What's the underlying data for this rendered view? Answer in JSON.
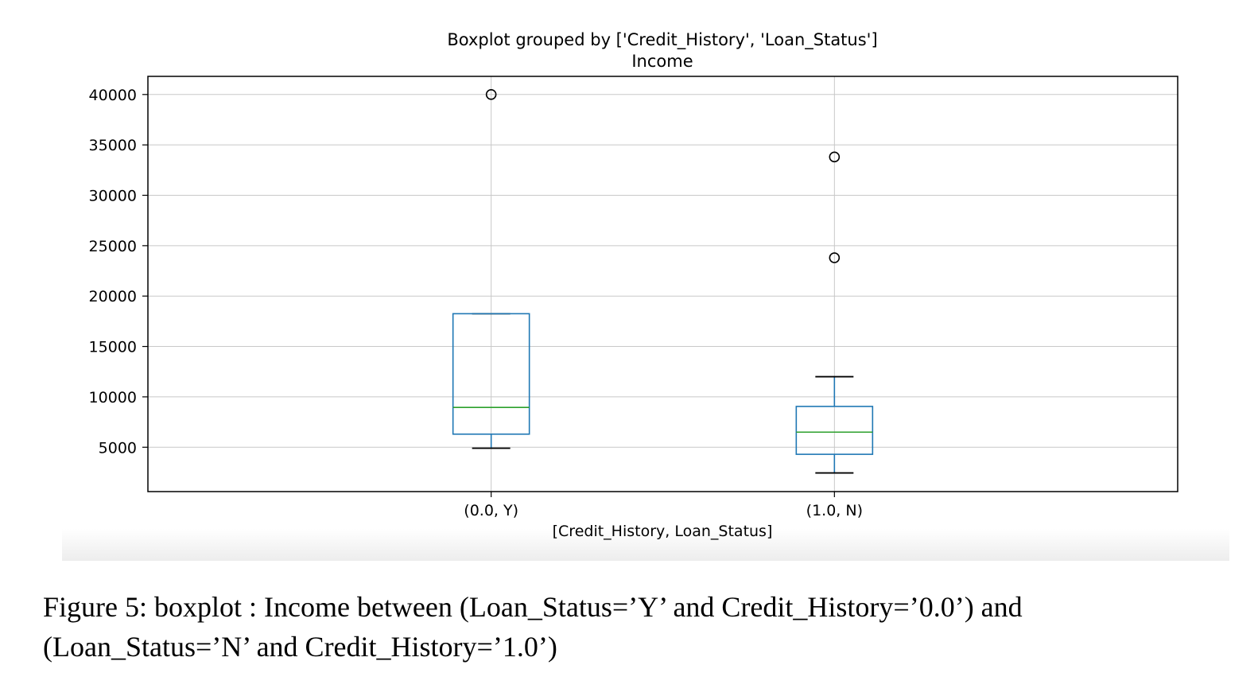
{
  "chart_data": {
    "type": "box",
    "title": "Boxplot grouped by ['Credit_History', 'Loan_Status']",
    "subtitle": "Income",
    "xlabel": "[Credit_History, Loan_Status]",
    "ylabel": "",
    "ylim": [
      600,
      41800
    ],
    "yticks": [
      5000,
      10000,
      15000,
      20000,
      25000,
      30000,
      35000,
      40000
    ],
    "grid": true,
    "box_color": "#1f77b4",
    "median_color": "#2ca02c",
    "categories": [
      "(0.0, Y)",
      "(1.0, N)"
    ],
    "boxes": [
      {
        "category": "(0.0, Y)",
        "whisker_low": 4900,
        "q1": 6300,
        "median": 8950,
        "q3": 18250,
        "whisker_high": 18250,
        "outliers": [
          40000
        ]
      },
      {
        "category": "(1.0, N)",
        "whisker_low": 2450,
        "q1": 4300,
        "median": 6500,
        "q3": 9050,
        "whisker_high": 12000,
        "outliers": [
          23800,
          33800
        ]
      }
    ]
  },
  "caption": {
    "line1": "Figure 5: boxplot : Income between (Loan_Status=’Y’ and Credit_History=’0.0’) and",
    "line2": "(Loan_Status=’N’ and Credit_History=’1.0’)"
  }
}
